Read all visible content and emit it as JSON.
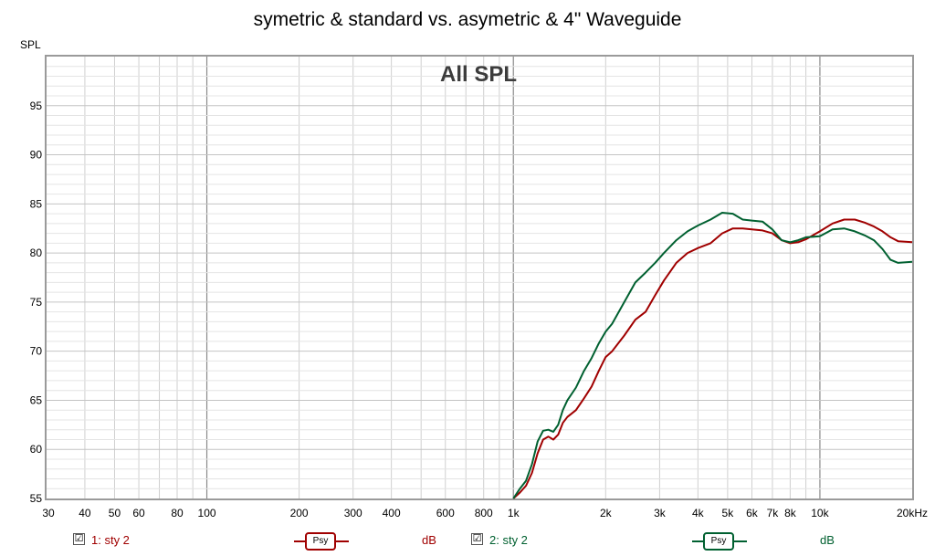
{
  "title": "symetric & standard vs. asymetric & 4\" Waveguide",
  "chart_data": {
    "type": "line",
    "title": "symetric & standard vs. asymetric & 4\" Waveguide",
    "subtitle": "All SPL",
    "ylabel": "SPL",
    "xlabel": "",
    "xscale": "log",
    "xlim": [
      30,
      20000
    ],
    "ylim": [
      55,
      100
    ],
    "grid": true,
    "yticks": [
      55,
      60,
      65,
      70,
      75,
      80,
      85,
      90,
      95
    ],
    "xticks": [
      {
        "v": 30,
        "label": "30"
      },
      {
        "v": 40,
        "label": "40"
      },
      {
        "v": 50,
        "label": "50"
      },
      {
        "v": 60,
        "label": "60"
      },
      {
        "v": 80,
        "label": "80"
      },
      {
        "v": 100,
        "label": "100"
      },
      {
        "v": 200,
        "label": "200"
      },
      {
        "v": 300,
        "label": "300"
      },
      {
        "v": 400,
        "label": "400"
      },
      {
        "v": 600,
        "label": "600"
      },
      {
        "v": 800,
        "label": "800"
      },
      {
        "v": 1000,
        "label": "1k"
      },
      {
        "v": 2000,
        "label": "2k"
      },
      {
        "v": 3000,
        "label": "3k"
      },
      {
        "v": 4000,
        "label": "4k"
      },
      {
        "v": 5000,
        "label": "5k"
      },
      {
        "v": 6000,
        "label": "6k"
      },
      {
        "v": 7000,
        "label": "7k"
      },
      {
        "v": 8000,
        "label": "8k"
      },
      {
        "v": 10000,
        "label": "10k"
      },
      {
        "v": 20000,
        "label": "20kHz"
      }
    ],
    "series": [
      {
        "name": "1: sty 2",
        "color": "#a00000",
        "x": [
          1000,
          1050,
          1100,
          1150,
          1200,
          1250,
          1300,
          1350,
          1400,
          1450,
          1500,
          1600,
          1700,
          1800,
          1900,
          2000,
          2100,
          2300,
          2500,
          2700,
          2900,
          3100,
          3400,
          3700,
          4000,
          4400,
          4800,
          5200,
          5600,
          6000,
          6500,
          7000,
          7500,
          8000,
          8500,
          9000,
          10000,
          11000,
          12000,
          13000,
          14000,
          15000,
          16000,
          17000,
          18000,
          20000
        ],
        "values": [
          55.0,
          55.6,
          56.3,
          57.6,
          59.6,
          61.0,
          61.3,
          61.0,
          61.5,
          62.7,
          63.3,
          64.0,
          65.2,
          66.4,
          68.0,
          69.4,
          70.0,
          71.6,
          73.2,
          74.0,
          75.7,
          77.2,
          79.0,
          80.0,
          80.5,
          81.0,
          82.0,
          82.5,
          82.5,
          82.4,
          82.3,
          82.0,
          81.3,
          81.0,
          81.1,
          81.4,
          82.2,
          83.0,
          83.4,
          83.4,
          83.1,
          82.7,
          82.2,
          81.6,
          81.2,
          81.1
        ]
      },
      {
        "name": "2: sty 2",
        "color": "#006030",
        "x": [
          1000,
          1050,
          1100,
          1150,
          1200,
          1250,
          1300,
          1350,
          1400,
          1450,
          1500,
          1600,
          1700,
          1800,
          1900,
          2000,
          2100,
          2300,
          2500,
          2700,
          2900,
          3100,
          3400,
          3700,
          4000,
          4400,
          4800,
          5200,
          5600,
          6000,
          6500,
          7000,
          7500,
          8000,
          8500,
          9000,
          10000,
          11000,
          12000,
          13000,
          14000,
          15000,
          16000,
          17000,
          18000,
          20000
        ],
        "values": [
          55.0,
          56.0,
          56.8,
          58.5,
          60.8,
          61.9,
          62.0,
          61.8,
          62.5,
          64.0,
          65.0,
          66.3,
          68.0,
          69.3,
          70.8,
          72.0,
          72.8,
          75.0,
          77.0,
          78.0,
          79.0,
          80.0,
          81.3,
          82.2,
          82.8,
          83.4,
          84.1,
          84.0,
          83.4,
          83.3,
          83.2,
          82.4,
          81.3,
          81.1,
          81.3,
          81.6,
          81.7,
          82.4,
          82.5,
          82.2,
          81.8,
          81.3,
          80.4,
          79.3,
          79.0,
          79.1
        ]
      }
    ]
  },
  "legend": [
    {
      "checkbox": "☑",
      "label": "1: sty 2",
      "psy": "Psy",
      "unit": "dB",
      "color": "#a00000"
    },
    {
      "checkbox": "☑",
      "label": "2: sty 2",
      "psy": "Psy",
      "unit": "dB",
      "color": "#006030"
    }
  ]
}
